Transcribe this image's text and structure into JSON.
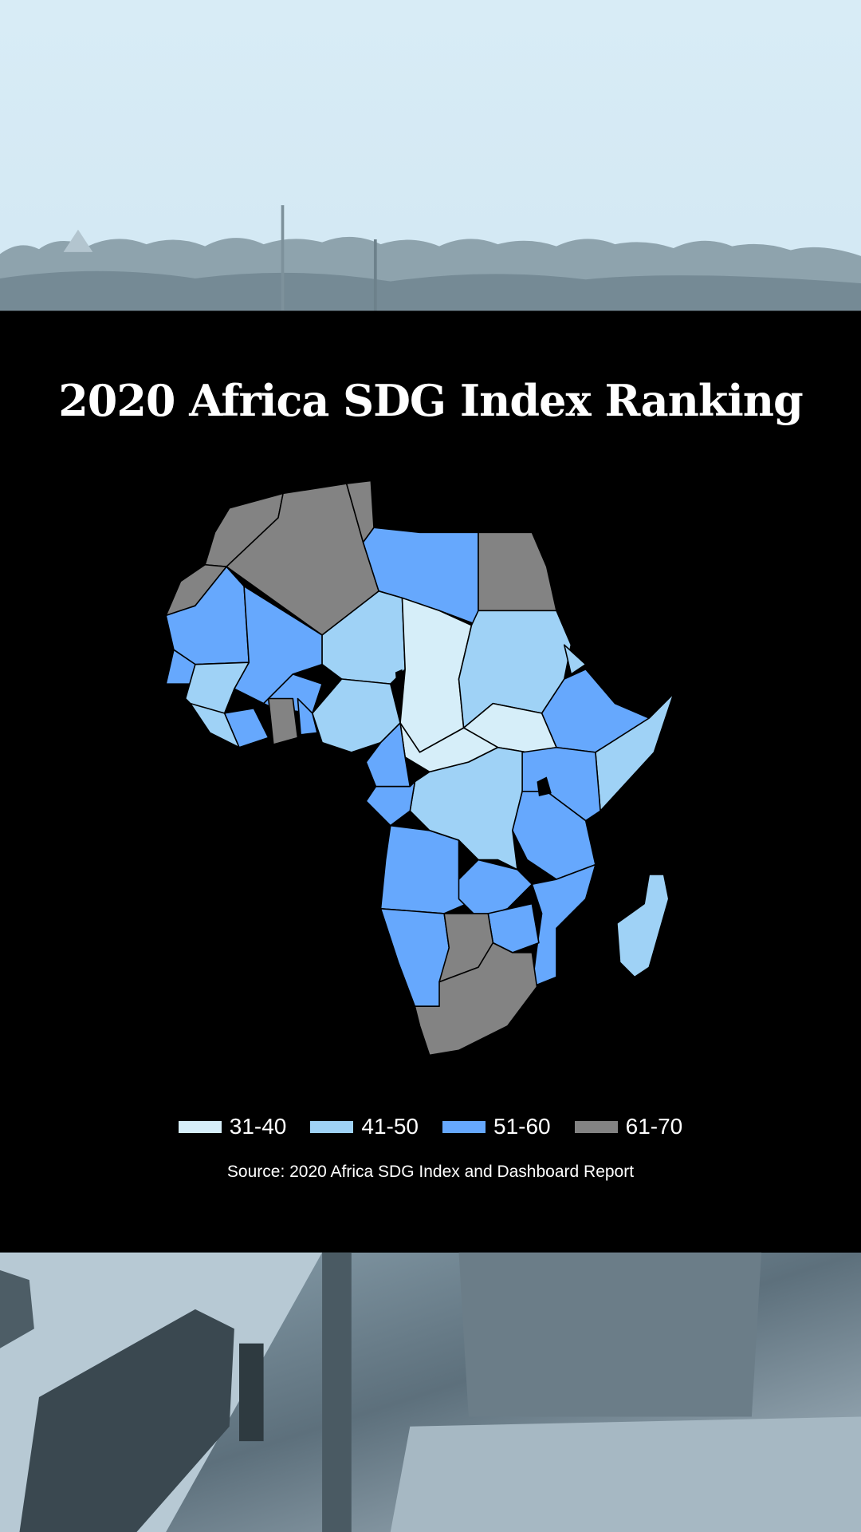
{
  "title": "2020 Africa SDG Index Ranking",
  "source": "Source: 2020 Africa SDG Index and Dashboard Report",
  "legend": [
    {
      "label": "31-40",
      "color": "#d6eef9"
    },
    {
      "label": "41-50",
      "color": "#9fd2f6"
    },
    {
      "label": "51-60",
      "color": "#66a8fd"
    },
    {
      "label": "61-70",
      "color": "#838383"
    }
  ],
  "map_values": {
    "MAR": "61-70",
    "ESH": "61-70",
    "DZA": "61-70",
    "TUN": "61-70",
    "EGY": "61-70",
    "LBY": "51-60",
    "MRT": "51-60",
    "MLI": "51-60",
    "NER": "41-50",
    "TCD": "31-40",
    "SDN": "41-50",
    "ERI": "41-50",
    "ETH": "51-60",
    "SOM": "41-50",
    "SSD": "31-40",
    "CAF": "31-40",
    "NGA": "41-50",
    "CMR": "51-60",
    "SEN": "51-60",
    "GIN": "41-50",
    "BFA": "51-60",
    "CIV": "51-60",
    "GHA": "61-70",
    "BEN": "51-60",
    "LBR": "41-50",
    "COD": "41-50",
    "COG": "51-60",
    "AGO": "51-60",
    "KEN": "51-60",
    "TZA": "51-60",
    "ZMB": "51-60",
    "MOZ": "51-60",
    "ZWE": "51-60",
    "NAM": "51-60",
    "BWA": "61-70",
    "ZAF": "61-70",
    "MDG": "41-50"
  }
}
